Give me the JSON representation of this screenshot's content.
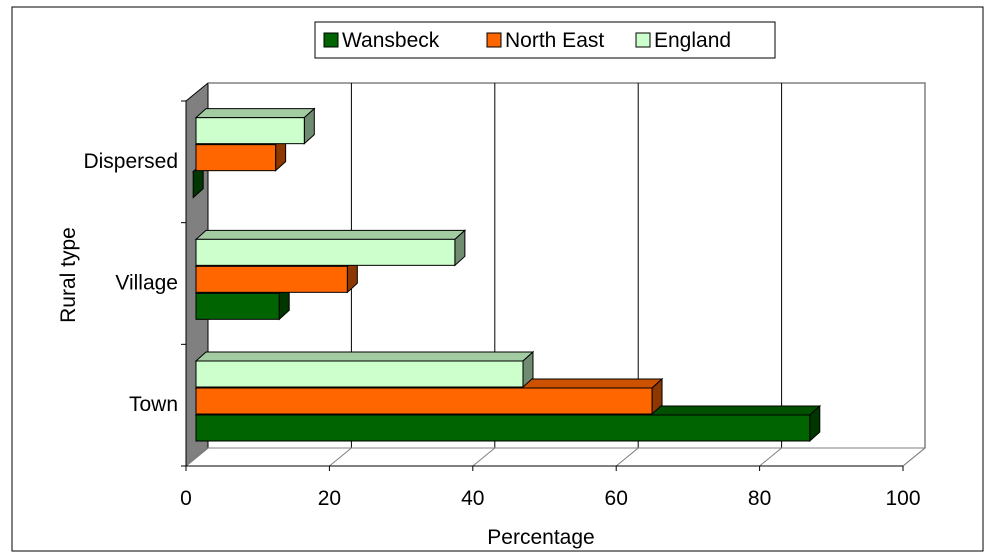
{
  "chart_data": {
    "type": "bar",
    "orientation": "horizontal",
    "style": "3d",
    "title": "",
    "xlabel": "Percentage",
    "ylabel": "Rural type",
    "categories": [
      "Town",
      "Village",
      "Dispersed"
    ],
    "xlim": [
      0,
      100
    ],
    "xticks": [
      "0",
      "20",
      "40",
      "60",
      "80",
      "100"
    ],
    "grid": "vertical",
    "legend_position": "top-center",
    "series": [
      {
        "name": "Wansbeck",
        "values": [
          87,
          13,
          1
        ],
        "color": "#006400"
      },
      {
        "name": "North East",
        "values": [
          65,
          22.5,
          12.5
        ],
        "color": "#FF6600"
      },
      {
        "name": "England",
        "values": [
          47,
          37.5,
          16.5
        ],
        "color": "#CCFFCC"
      }
    ]
  }
}
